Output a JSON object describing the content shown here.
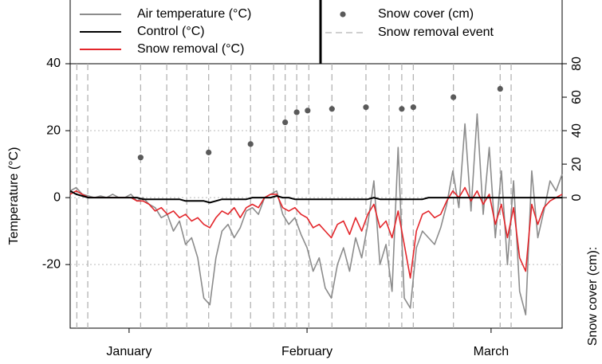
{
  "chart_data": {
    "type": "line",
    "ylabel": "Temperature (°C)",
    "y2label": "Snow cover (cm):",
    "x": [
      0,
      1,
      2,
      3,
      4,
      5,
      6,
      7,
      8,
      9,
      10,
      11,
      12,
      13,
      14,
      15,
      16,
      17,
      18,
      19,
      20,
      21,
      22,
      23,
      24,
      25,
      26,
      27,
      28,
      29,
      30,
      31,
      32,
      33,
      34,
      35,
      36,
      37,
      38,
      39,
      40,
      41,
      42,
      43,
      44,
      45,
      46,
      47,
      48,
      49,
      50,
      51,
      52,
      53,
      54,
      55,
      56,
      57,
      58,
      59,
      60,
      61,
      62,
      63,
      64,
      65,
      66,
      67,
      68,
      69,
      70,
      71,
      72,
      73,
      74,
      75,
      76,
      77,
      78,
      79,
      80,
      81
    ],
    "xlim": [
      0,
      81
    ],
    "xticks": [
      {
        "value": 9.7,
        "label": "January"
      },
      {
        "value": 39,
        "label": "February"
      },
      {
        "value": 69.3,
        "label": "March"
      }
    ],
    "ylim": [
      -39,
      40
    ],
    "yticks": [
      -20,
      0,
      20,
      40
    ],
    "y2lim": [
      -78,
      80
    ],
    "y2ticks": [
      0,
      20,
      40,
      60,
      80
    ],
    "grid": true,
    "series": [
      {
        "name": "Air temperature (°C)",
        "color": "#8c8c8c",
        "values": [
          2,
          3,
          1,
          0.5,
          0,
          0.5,
          0,
          1,
          0,
          0,
          1,
          -1,
          0,
          -2,
          -3,
          -6,
          -5,
          -10,
          -7,
          -14,
          -12,
          -18,
          -30,
          -32,
          -18,
          -10,
          -8,
          -12,
          -9,
          -4,
          -3,
          -5,
          0,
          1,
          2,
          -5,
          -8,
          -6,
          -11,
          -15,
          -22,
          -18,
          -27,
          -30,
          -20,
          -15,
          -22,
          -12,
          -18,
          -8,
          5,
          -20,
          -14,
          -28,
          15,
          -30,
          -33,
          -15,
          -10,
          -12,
          -14,
          -9,
          -2,
          8,
          -3,
          22,
          -4,
          25,
          -5,
          15,
          -12,
          8,
          -20,
          5,
          -28,
          -35,
          8,
          -12,
          -4,
          5,
          2,
          7
        ]
      },
      {
        "name": "Control  (°C)",
        "color": "#000000",
        "values": [
          2,
          1,
          0.5,
          0,
          0,
          0,
          0,
          0,
          0,
          0,
          0,
          0,
          -0.5,
          -0.5,
          -0.5,
          -0.5,
          -0.5,
          -0.5,
          -0.5,
          -1,
          -1,
          -1,
          -1,
          -1.5,
          -1,
          -0.5,
          -0.5,
          -0.5,
          -0.5,
          -0.5,
          0,
          0,
          0,
          0,
          0.5,
          0,
          0,
          -0.5,
          -0.5,
          -0.5,
          -0.5,
          -0.5,
          -0.5,
          -0.5,
          -0.5,
          -0.5,
          -0.5,
          -0.5,
          -0.5,
          -0.5,
          0,
          -0.5,
          -0.5,
          -0.5,
          -0.5,
          -0.5,
          -0.5,
          -0.5,
          -0.5,
          0,
          0,
          0,
          0,
          0,
          0,
          0,
          0,
          0,
          0,
          0,
          0,
          0,
          0,
          0,
          0,
          0,
          0,
          0,
          0,
          0,
          0,
          0
        ]
      },
      {
        "name": "Snow removal (°C)",
        "color": "#e3262b",
        "values": [
          1,
          2,
          1,
          0,
          0,
          0,
          0,
          0,
          0,
          0,
          0,
          -1,
          -1,
          -2,
          -4,
          -3,
          -5,
          -4,
          -6,
          -5,
          -7,
          -6,
          -8,
          -9,
          -6,
          -4,
          -5,
          -3,
          -6,
          -3,
          -2,
          -3,
          0,
          1,
          1,
          -3,
          -4,
          -3,
          -5,
          -6,
          -9,
          -8,
          -10,
          -12,
          -8,
          -7,
          -11,
          -6,
          -10,
          -5,
          -2,
          -9,
          -7,
          -12,
          -4,
          -14,
          -24,
          -10,
          -5,
          -4,
          -6,
          -5,
          -1,
          2,
          0,
          3,
          -1,
          2,
          -2,
          1,
          -8,
          -2,
          -12,
          -3,
          -18,
          -22,
          -2,
          -8,
          -3,
          -1,
          0,
          1
        ]
      },
      {
        "name": "Snow cover (cm)",
        "color": "#5a5a5a",
        "axis": "y2",
        "mode": "points",
        "x": [
          11.6,
          22.8,
          29.7,
          35.4,
          37.3,
          39.1,
          43.1,
          48.7,
          54.6,
          56.5,
          63.1,
          70.8
        ],
        "values": [
          24,
          27,
          32,
          45,
          51,
          52,
          53,
          54,
          53,
          54,
          60,
          65
        ]
      }
    ],
    "events": {
      "name": "Snow removal event",
      "color": "#b4b4b4",
      "x": [
        1.1,
        2.9,
        11.6,
        15.9,
        19.2,
        22.8,
        26.5,
        29.7,
        33.5,
        35.4,
        37.3,
        39.3,
        43.1,
        48.7,
        52.5,
        54.6,
        56.5,
        63.1,
        70.8,
        72.6
      ]
    }
  }
}
